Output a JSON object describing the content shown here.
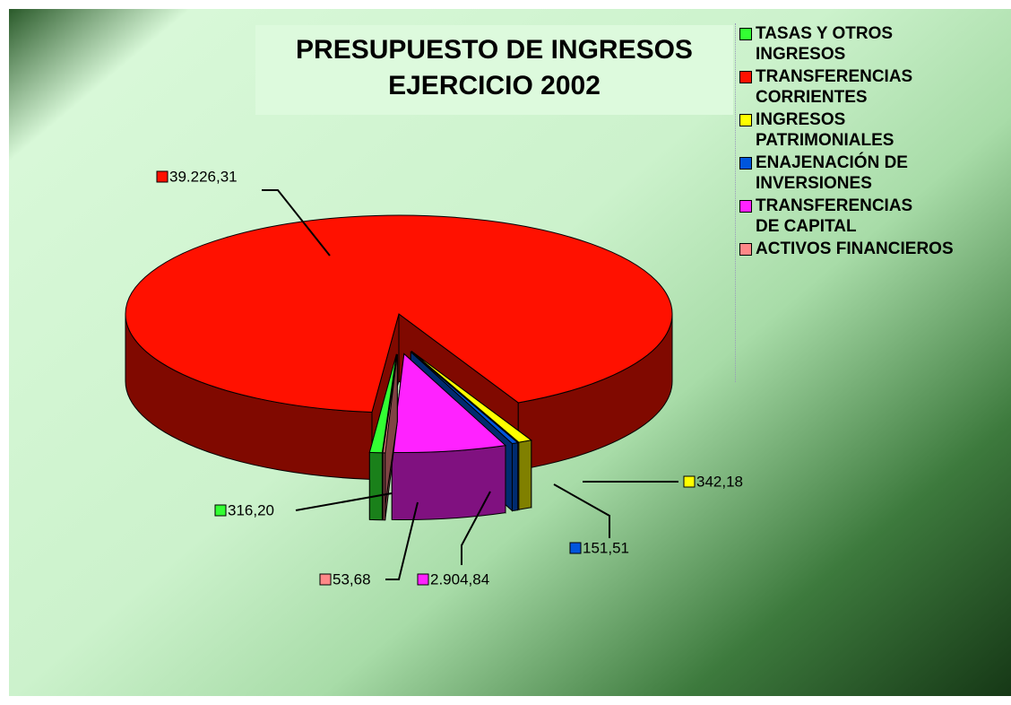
{
  "chart_data": {
    "type": "pie",
    "title": "PRESUPUESTO DE INGRESOS EJERCICIO 2002",
    "categories": [
      "TASAS Y OTROS INGRESOS",
      "TRANSFERENCIAS CORRIENTES",
      "INGRESOS PATRIMONIALES",
      "ENAJENACIÓN DE INVERSIONES",
      "TRANSFERENCIAS DE CAPITAL",
      "ACTIVOS FINANCIEROS"
    ],
    "values": [
      316.2,
      39226.31,
      342.18,
      151.51,
      2904.84,
      53.68
    ],
    "value_labels": [
      "316,20",
      "39.226,31",
      "342,18",
      "151,51",
      "2.904,84",
      "53,68"
    ],
    "colors": [
      "#33ff33",
      "#ff1100",
      "#ffff00",
      "#0055dd",
      "#ff22ff",
      "#ff8888"
    ]
  }
}
